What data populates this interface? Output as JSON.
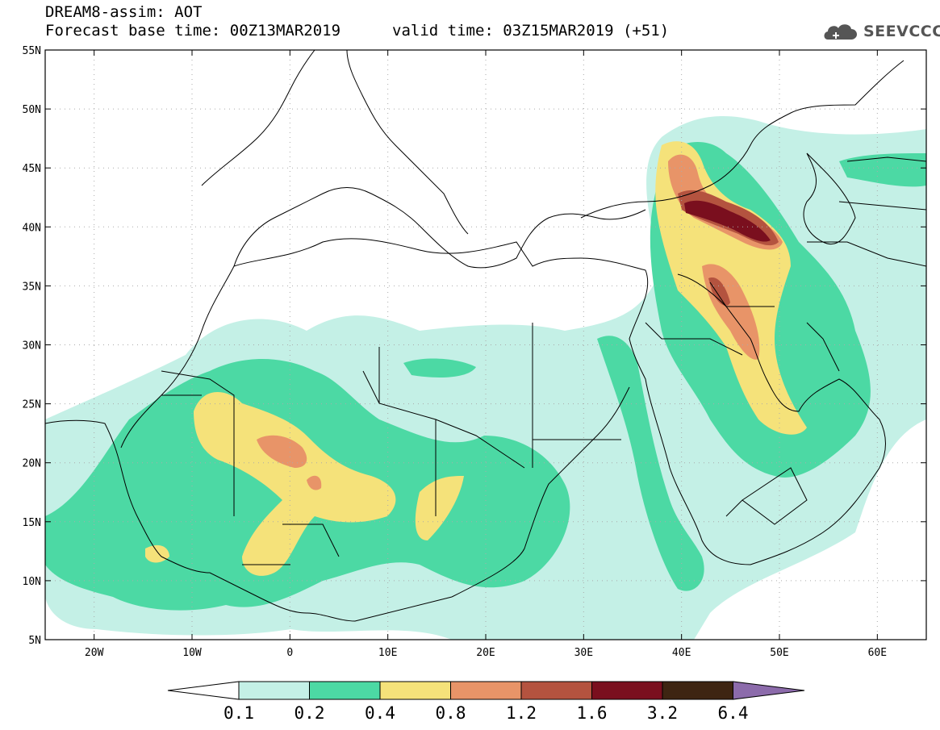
{
  "header": {
    "line1": "DREAM8-assim: AOT",
    "base_time": "Forecast base time: 00Z13MAR2019",
    "valid_time": "valid time: 03Z15MAR2019 (+51)"
  },
  "logo": {
    "text": "SEEVCCC",
    "icon": "cloud-icon"
  },
  "map": {
    "lon_range": [
      -25,
      65
    ],
    "lat_range": [
      5,
      55
    ],
    "lon_ticks": [
      {
        "value": -20,
        "label": "20W"
      },
      {
        "value": -10,
        "label": "10W"
      },
      {
        "value": 0,
        "label": "0"
      },
      {
        "value": 10,
        "label": "10E"
      },
      {
        "value": 20,
        "label": "20E"
      },
      {
        "value": 30,
        "label": "30E"
      },
      {
        "value": 40,
        "label": "40E"
      },
      {
        "value": 50,
        "label": "50E"
      },
      {
        "value": 60,
        "label": "60E"
      }
    ],
    "lat_ticks": [
      {
        "value": 55,
        "label": "55N"
      },
      {
        "value": 50,
        "label": "50N"
      },
      {
        "value": 45,
        "label": "45N"
      },
      {
        "value": 40,
        "label": "40N"
      },
      {
        "value": 35,
        "label": "35N"
      },
      {
        "value": 30,
        "label": "30N"
      },
      {
        "value": 25,
        "label": "25N"
      },
      {
        "value": 20,
        "label": "20N"
      },
      {
        "value": 15,
        "label": "15N"
      },
      {
        "value": 10,
        "label": "10N"
      },
      {
        "value": 5,
        "label": "5N"
      }
    ],
    "grid": true
  },
  "colorbar": {
    "levels": [
      "0.1",
      "0.2",
      "0.4",
      "0.8",
      "1.2",
      "1.6",
      "3.2",
      "6.4"
    ],
    "colors": [
      "#ffffff",
      "#c4f0e6",
      "#4cd9a4",
      "#f5e27a",
      "#e89468",
      "#b4533f",
      "#7a0f1e",
      "#3e2512",
      "#8c6bab"
    ]
  }
}
